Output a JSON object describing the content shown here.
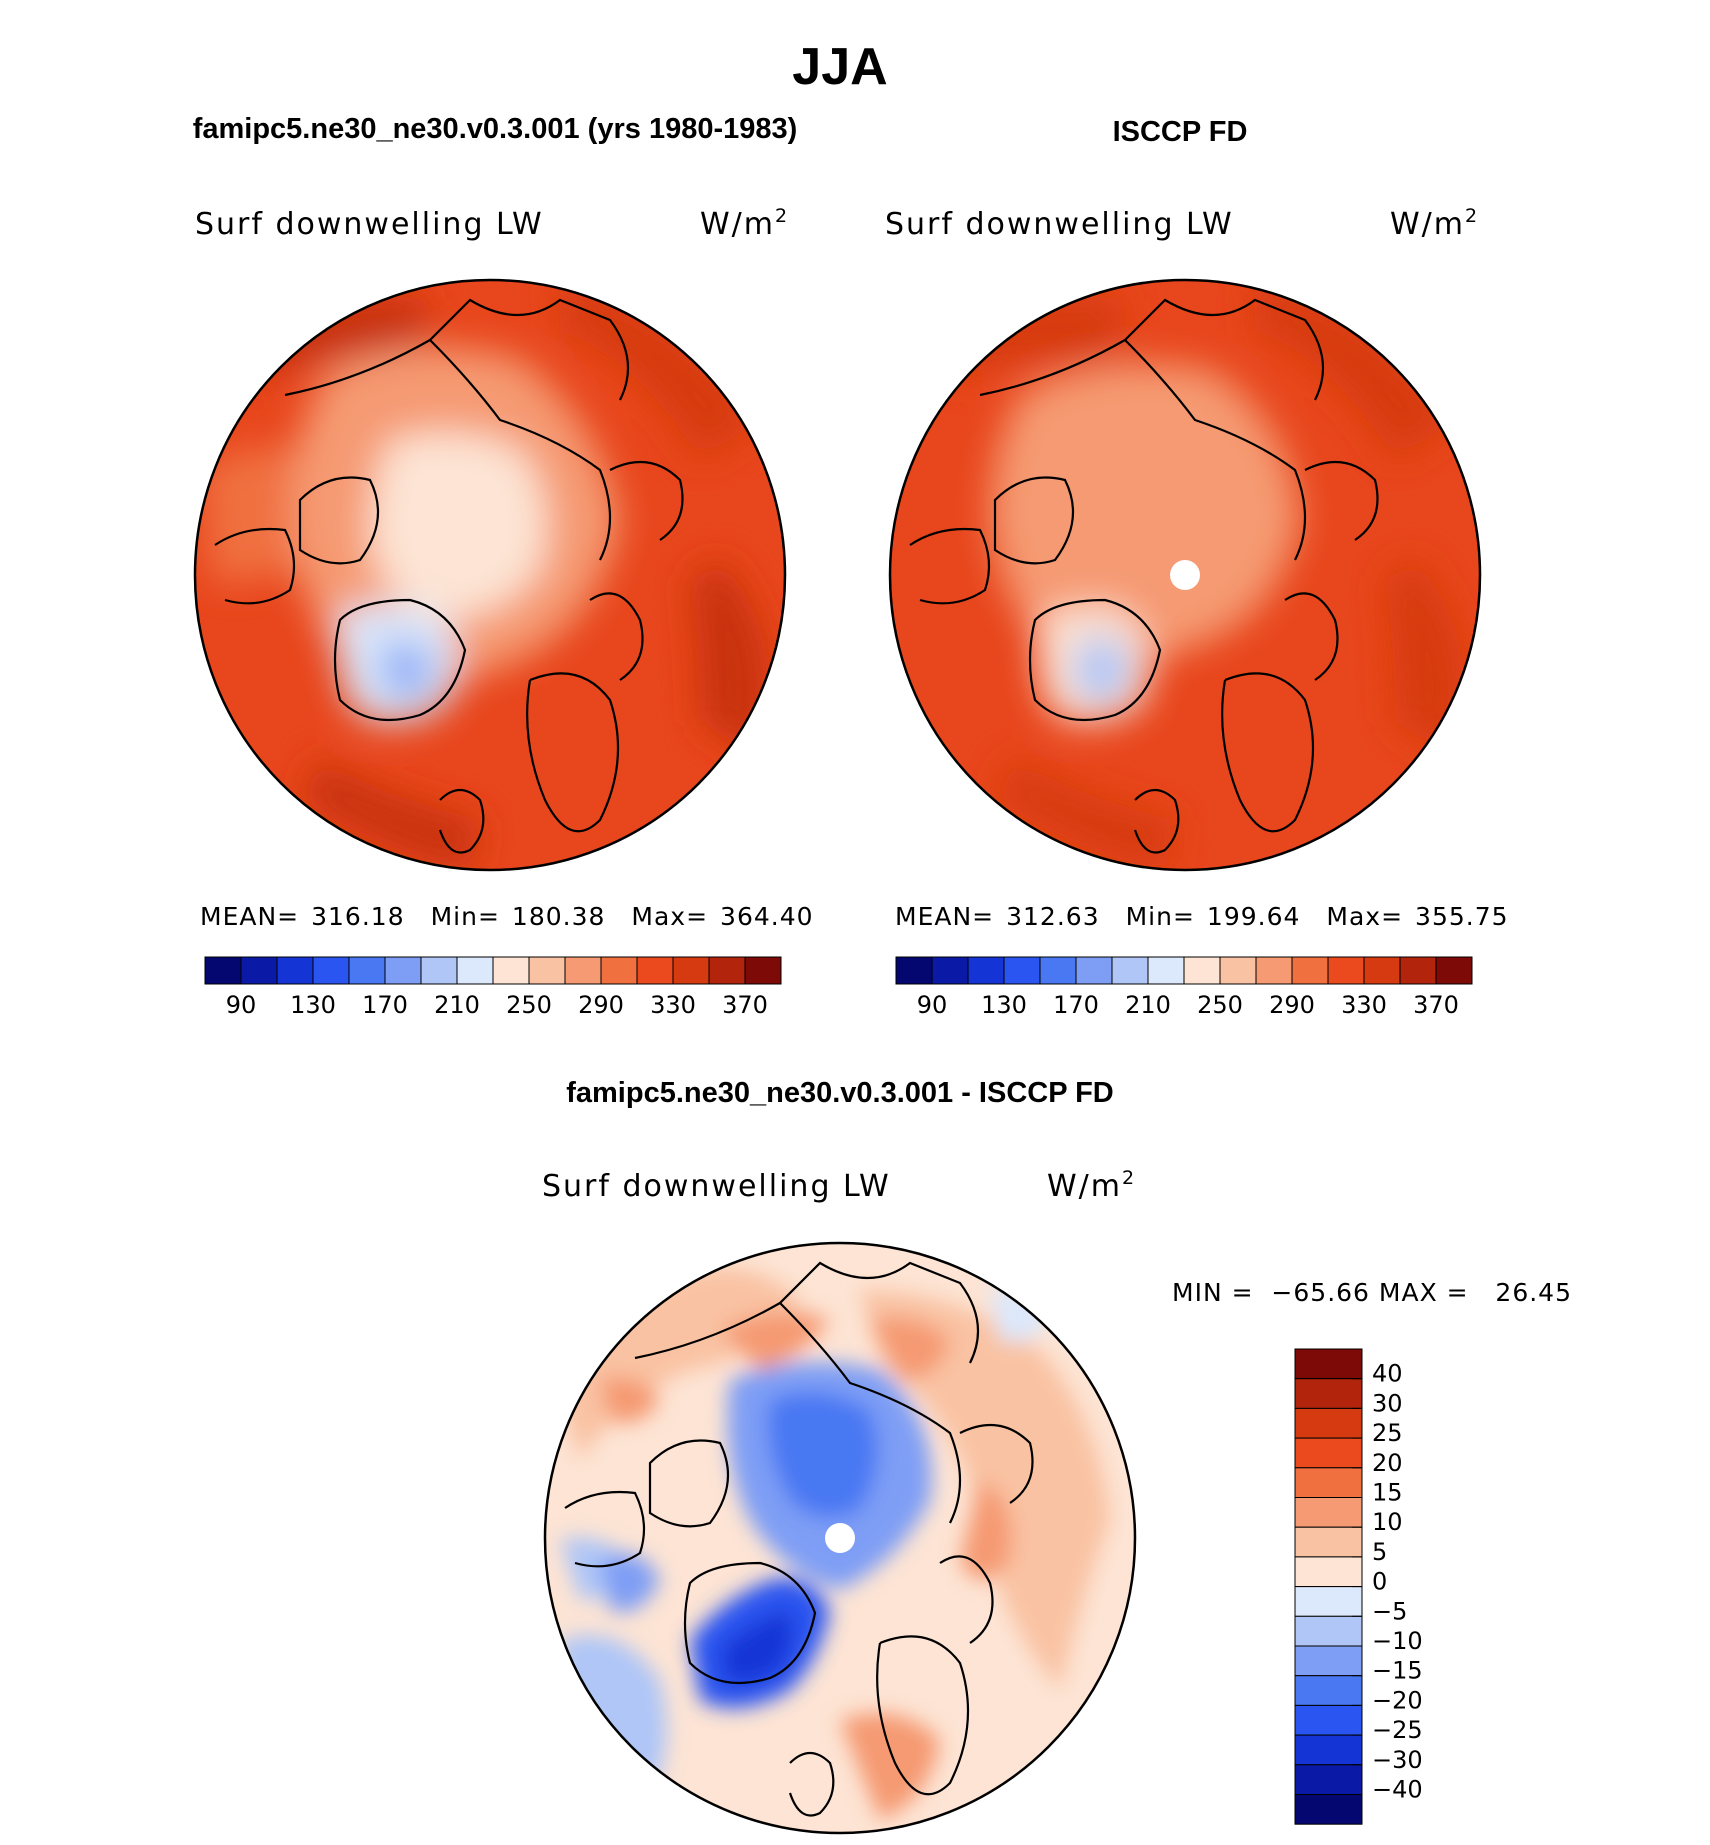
{
  "main_title": "JJA",
  "panel_left": {
    "header": "famipc5.ne30_ne30.v0.3.001 (yrs 1980-1983)",
    "var_label": "Surf downwelling LW",
    "units_base": "W/m",
    "units_exp": "2",
    "stats": {
      "mean_label": "MEAN=",
      "mean": "316.18",
      "min_label": "Min=",
      "min": "180.38",
      "max_label": "Max=",
      "max": "364.40"
    }
  },
  "panel_right": {
    "header": "ISCCP FD",
    "var_label": "Surf downwelling LW",
    "units_base": "W/m",
    "units_exp": "2",
    "stats": {
      "mean_label": "MEAN=",
      "mean": "312.63",
      "min_label": "Min=",
      "min": "199.64",
      "max_label": "Max=",
      "max": "355.75"
    }
  },
  "panel_diff": {
    "header": "famipc5.ne30_ne30.v0.3.001 - ISCCP FD",
    "var_label": "Surf downwelling LW",
    "units_base": "W/m",
    "units_exp": "2",
    "minmax": "MIN =  −65.66 MAX =   26.45"
  },
  "colorbar_abs": {
    "colors": [
      "#04076f",
      "#0a1aa6",
      "#1534d6",
      "#2a55f0",
      "#4a78f3",
      "#7e9ef5",
      "#afc6f7",
      "#dce8fb",
      "#fde4d4",
      "#f9c2a3",
      "#f59a72",
      "#f0703f",
      "#ea4a1e",
      "#d63a10",
      "#b3240c",
      "#7d0a06"
    ],
    "tick_labels": [
      "90",
      "130",
      "170",
      "210",
      "250",
      "290",
      "330",
      "370"
    ]
  },
  "colorbar_diff": {
    "colors_top_to_bottom": [
      "#7d0a06",
      "#b3240c",
      "#d63a10",
      "#ea4a1e",
      "#f0703f",
      "#f59a72",
      "#f9c2a3",
      "#fde4d4",
      "#dce8fb",
      "#afc6f7",
      "#7e9ef5",
      "#4a78f3",
      "#2a55f0",
      "#1534d6",
      "#0a1aa6",
      "#04076f"
    ],
    "tick_labels": [
      "40",
      "30",
      "25",
      "20",
      "15",
      "10",
      "5",
      "0",
      "−5",
      "−10",
      "−15",
      "−20",
      "−25",
      "−30",
      "−40"
    ]
  }
}
